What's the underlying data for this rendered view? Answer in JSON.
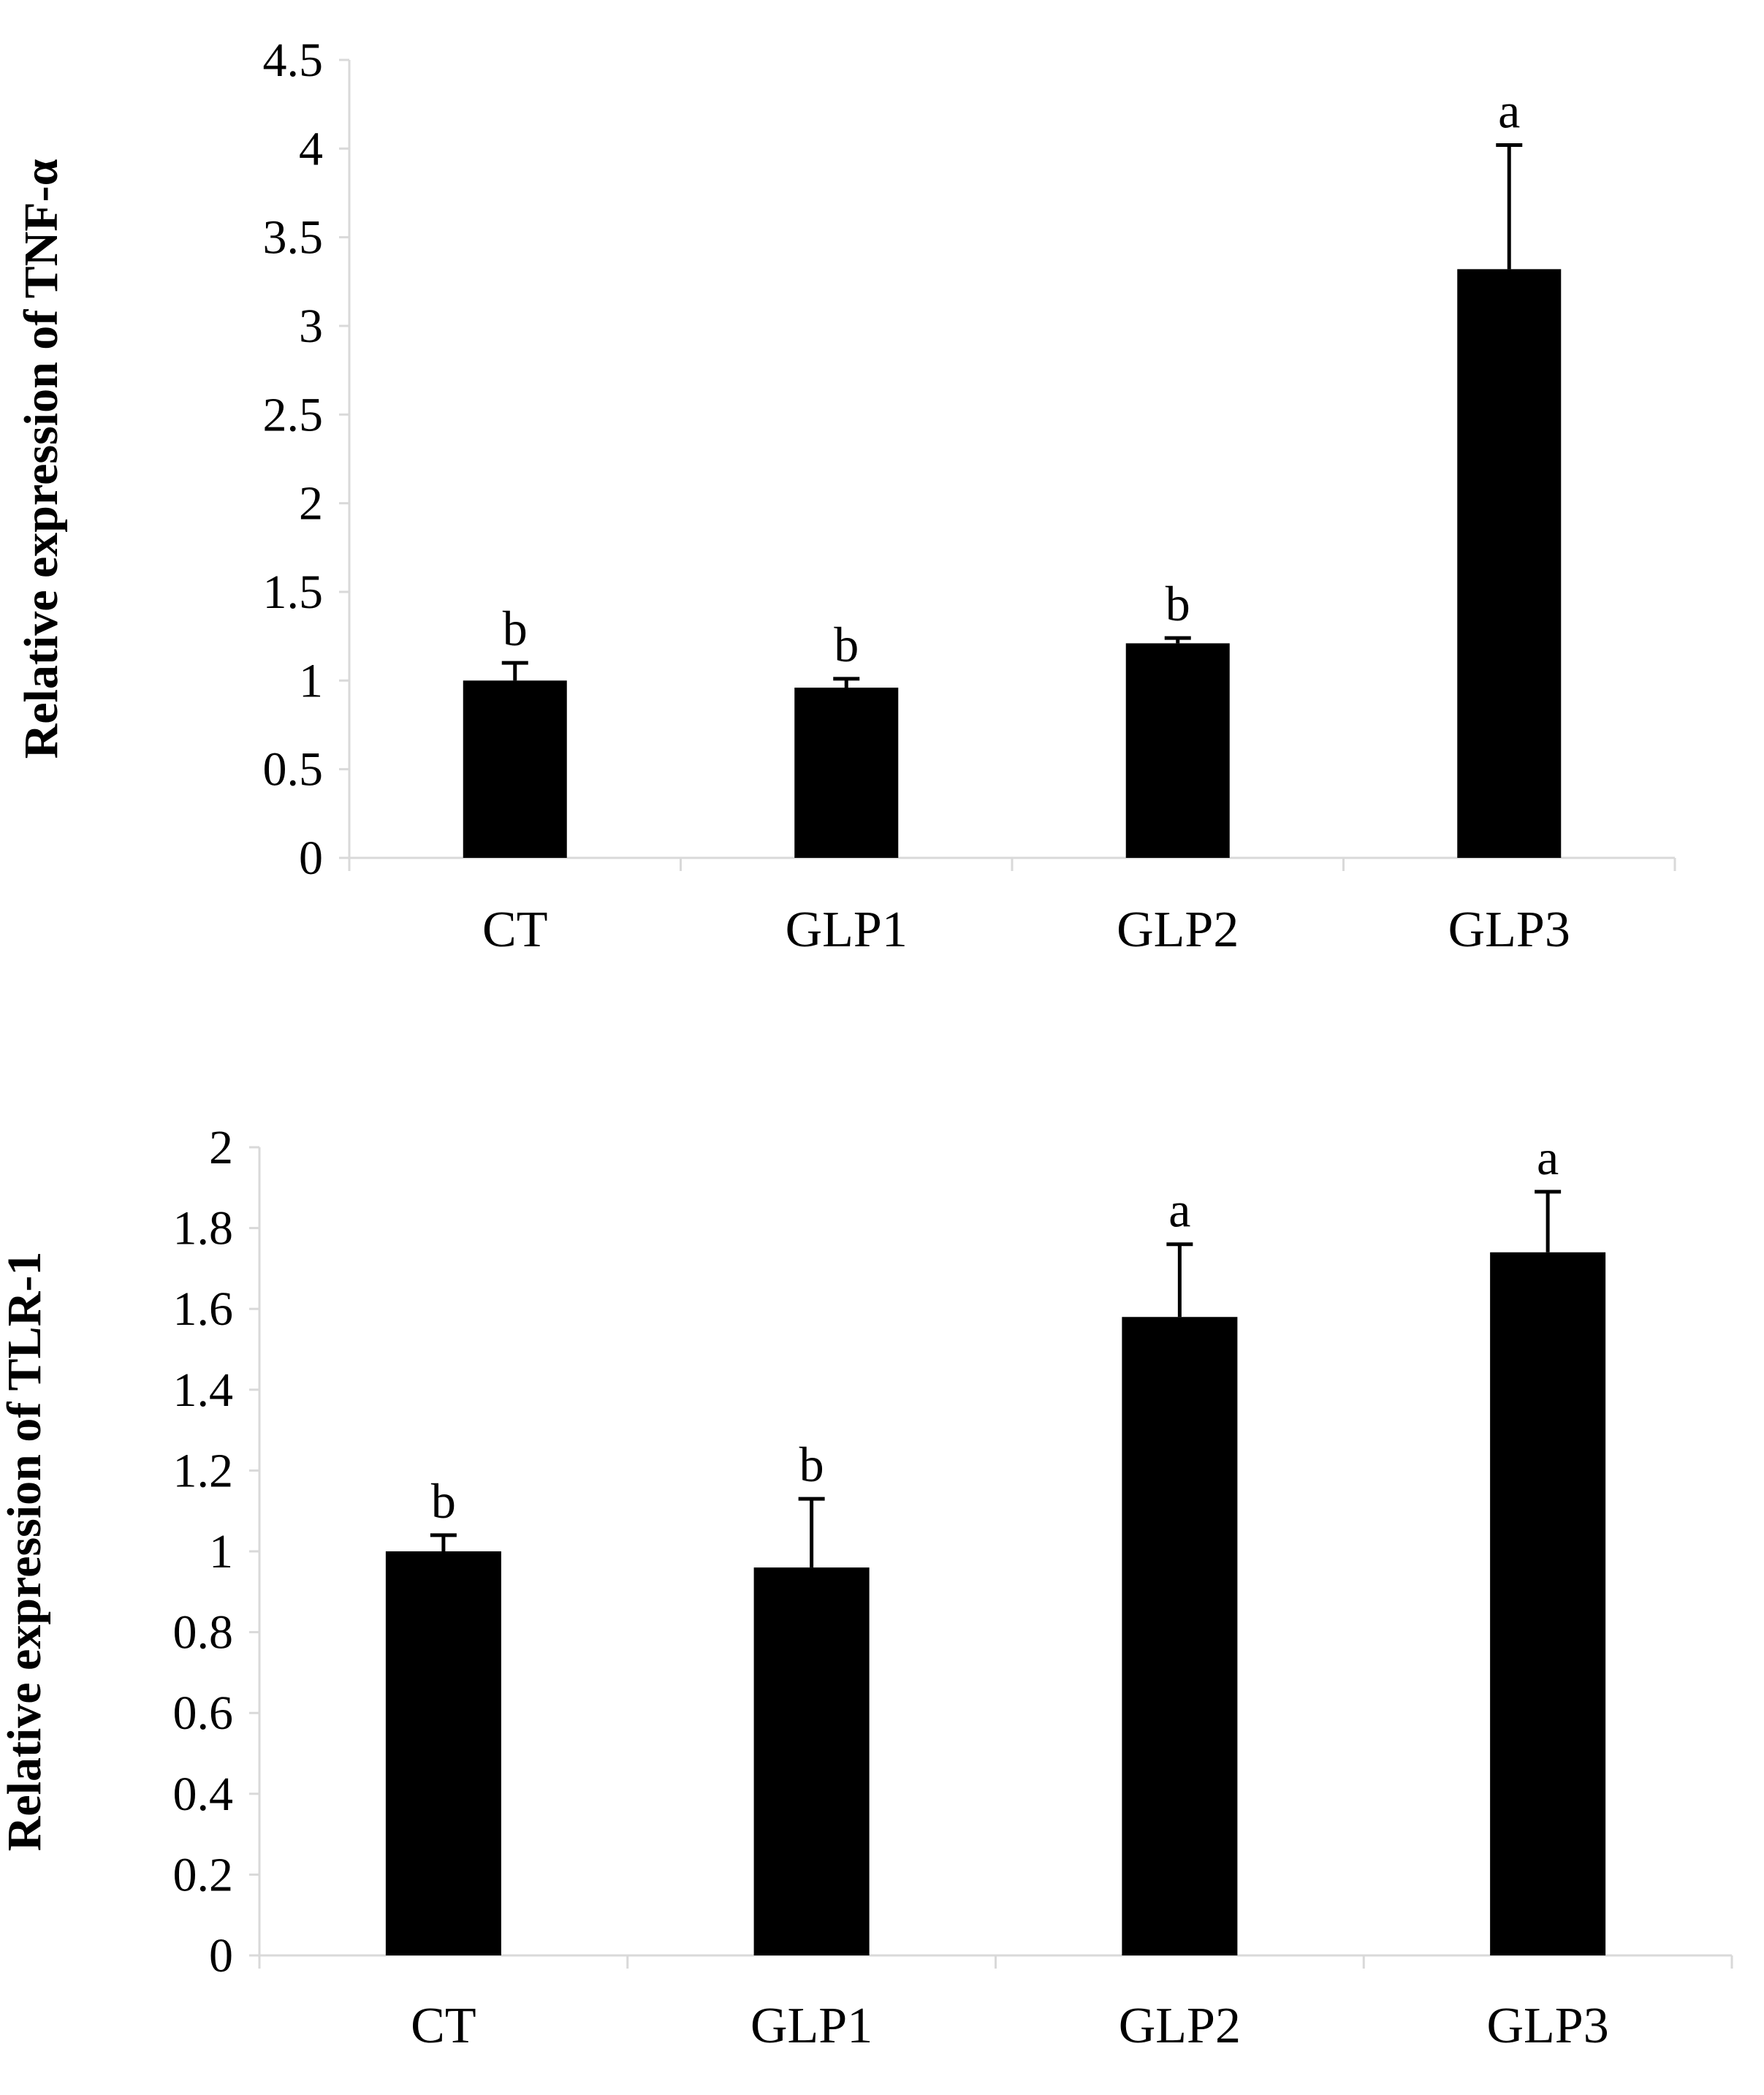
{
  "colors": {
    "bar": "#000000",
    "axis": "#d9d9d9",
    "text": "#000000",
    "background": "#ffffff"
  },
  "chart_data": [
    {
      "type": "bar",
      "title": "",
      "xlabel": "",
      "ylabel": "Relative expression of TNF-α",
      "categories": [
        "CT",
        "GLP1",
        "GLP2",
        "GLP3"
      ],
      "values": [
        1.0,
        0.96,
        1.21,
        3.32
      ],
      "error_upper": [
        0.1,
        0.05,
        0.03,
        0.7
      ],
      "significance": [
        "b",
        "b",
        "b",
        "a"
      ],
      "ylim": [
        0,
        4.5
      ],
      "yticks": [
        0,
        0.5,
        1,
        1.5,
        2,
        2.5,
        3,
        3.5,
        4,
        4.5
      ],
      "ytick_labels": [
        "0",
        "0.5",
        "1",
        "1.5",
        "2",
        "2.5",
        "3",
        "3.5",
        "4",
        "4.5"
      ],
      "grid": false,
      "legend": "none"
    },
    {
      "type": "bar",
      "title": "",
      "xlabel": "",
      "ylabel": "Relative expression of TLR-1",
      "categories": [
        "CT",
        "GLP1",
        "GLP2",
        "GLP3"
      ],
      "values": [
        1.0,
        0.96,
        1.58,
        1.74
      ],
      "error_upper": [
        0.04,
        0.17,
        0.18,
        0.15
      ],
      "significance": [
        "b",
        "b",
        "a",
        "a"
      ],
      "ylim": [
        0,
        2
      ],
      "yticks": [
        0,
        0.2,
        0.4,
        0.6,
        0.8,
        1,
        1.2,
        1.4,
        1.6,
        1.8,
        2
      ],
      "ytick_labels": [
        "0",
        "0.2",
        "0.4",
        "0.6",
        "0.8",
        "1",
        "1.2",
        "1.4",
        "1.6",
        "1.8",
        "2"
      ],
      "grid": false,
      "legend": "none"
    }
  ]
}
